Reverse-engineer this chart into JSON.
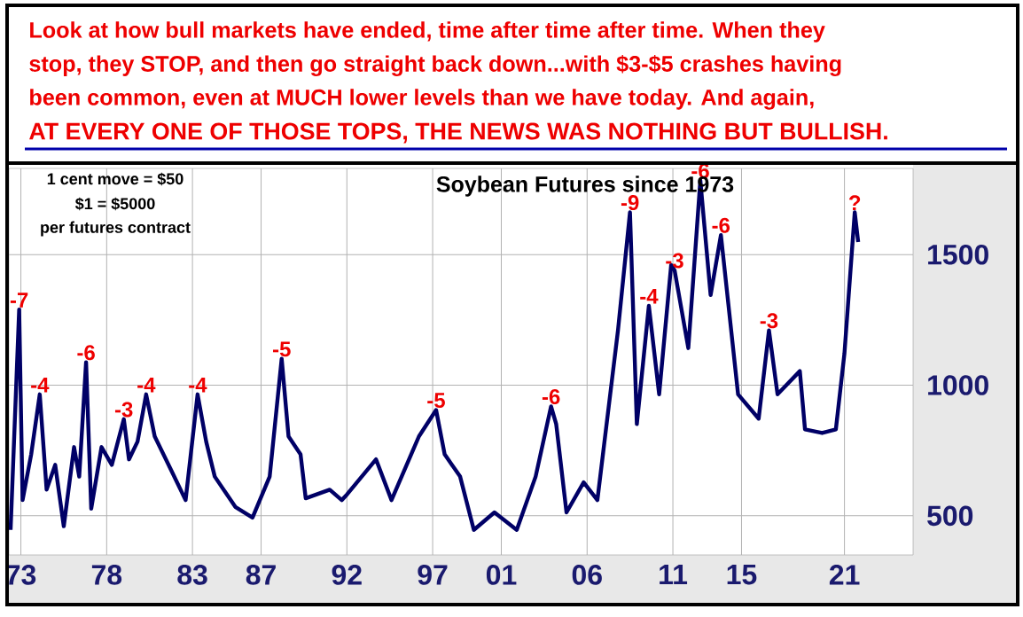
{
  "chart_data": {
    "type": "line",
    "title": "Soybean Futures since 1973",
    "annotations": [
      "Look at how bull markets have ended, time after time after time. When they",
      "stop,  they STOP, and then go straight back down...with $3-$5 crashes having",
      "been common, even at MUCH lower levels than we have today. And again,",
      "AT EVERY ONE OF THOSE TOPS, THE NEWS WAS NOTHING BUT BULLISH.",
      "1 cent move = $50",
      "$1 = $5000",
      "per futures contract",
      {
        "text": "-7",
        "x": 1972.9,
        "y": 1290
      },
      {
        "text": "-4",
        "x": 1974.1,
        "y": 965
      },
      {
        "text": "-6",
        "x": 1976.8,
        "y": 1088
      },
      {
        "text": "-3",
        "x": 1979.0,
        "y": 870
      },
      {
        "text": "-4",
        "x": 1980.3,
        "y": 965
      },
      {
        "text": "-4",
        "x": 1983.3,
        "y": 965
      },
      {
        "text": "-5",
        "x": 1988.2,
        "y": 1101
      },
      {
        "text": "-5",
        "x": 1997.2,
        "y": 905
      },
      {
        "text": "-6",
        "x": 2003.9,
        "y": 919
      },
      {
        "text": "-9",
        "x": 2008.5,
        "y": 1662
      },
      {
        "text": "-4",
        "x": 2009.6,
        "y": 1304
      },
      {
        "text": "-3",
        "x": 2011.1,
        "y": 1440
      },
      {
        "text": "-6",
        "x": 2012.6,
        "y": 1784
      },
      {
        "text": "-6",
        "x": 2013.8,
        "y": 1575
      },
      {
        "text": "-3",
        "x": 2016.6,
        "y": 1210
      },
      {
        "text": "?",
        "x": 2021.6,
        "y": 1662
      }
    ],
    "x": [
      1972.4,
      1972.9,
      1973.1,
      1973.6,
      1974.1,
      1974.5,
      1975.0,
      1975.5,
      1976.1,
      1976.4,
      1976.8,
      1977.1,
      1977.7,
      1978.3,
      1979.0,
      1979.3,
      1979.8,
      1980.3,
      1980.8,
      1981.8,
      1982.6,
      1983.3,
      1983.8,
      1984.3,
      1985.5,
      1986.5,
      1987.5,
      1988.2,
      1988.6,
      1989.3,
      1989.6,
      1991.0,
      1991.7,
      1992.0,
      1993.7,
      1994.6,
      1996.2,
      1997.2,
      1997.7,
      1998.6,
      1999.4,
      2000.6,
      2001.9,
      2003.0,
      2003.9,
      2004.2,
      2004.8,
      2005.8,
      2006.6,
      2007.8,
      2008.5,
      2008.9,
      2009.6,
      2010.2,
      2010.9,
      2011.1,
      2011.9,
      2012.6,
      2013.2,
      2013.8,
      2014.8,
      2016.0,
      2016.6,
      2017.1,
      2018.4,
      2018.7,
      2019.7,
      2020.5,
      2021.0,
      2021.6,
      2021.8
    ],
    "values": [
      446,
      1290,
      560,
      735,
      965,
      600,
      695,
      460,
      763,
      650,
      1088,
      527,
      763,
      695,
      870,
      716,
      784,
      965,
      804,
      669,
      560,
      965,
      784,
      650,
      534,
      493,
      650,
      1101,
      804,
      735,
      567,
      600,
      560,
      581,
      716,
      560,
      804,
      905,
      735,
      650,
      446,
      513,
      446,
      650,
      919,
      851,
      513,
      628,
      560,
      1210,
      1662,
      851,
      1304,
      965,
      1460,
      1440,
      1142,
      1784,
      1345,
      1575,
      965,
      872,
      1210,
      965,
      1054,
      831,
      817,
      831,
      1122,
      1662,
      1548
    ],
    "color": "#000066",
    "xlim": [
      1972.3,
      2025
    ],
    "ylim": [
      350,
      1830
    ],
    "xticks": [
      {
        "value": 1973,
        "label": "73"
      },
      {
        "value": 1978,
        "label": "78"
      },
      {
        "value": 1983,
        "label": "83"
      },
      {
        "value": 1987,
        "label": "87"
      },
      {
        "value": 1992,
        "label": "92"
      },
      {
        "value": 1997,
        "label": "97"
      },
      {
        "value": 2001,
        "label": "01"
      },
      {
        "value": 2006,
        "label": "06"
      },
      {
        "value": 2011,
        "label": "11"
      },
      {
        "value": 2015,
        "label": "15"
      },
      {
        "value": 2021,
        "label": "21"
      }
    ],
    "yticks": [
      500,
      1000,
      1500
    ],
    "grid": true
  }
}
